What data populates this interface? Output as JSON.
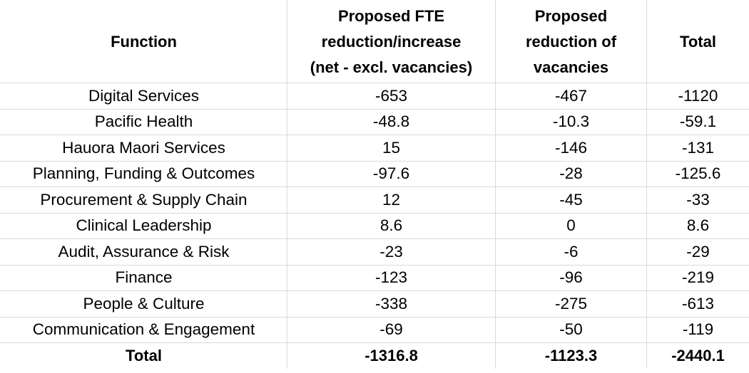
{
  "table": {
    "headers": {
      "function": "Function",
      "fte_line1": "Proposed FTE",
      "fte_line2": "reduction/increase",
      "fte_line3": "(net - excl. vacancies)",
      "vac_line1": "Proposed",
      "vac_line2": "reduction of",
      "vac_line3": "vacancies",
      "total": "Total"
    },
    "rows": [
      {
        "function": "Digital Services",
        "fte": "-653",
        "vacancies": "-467",
        "total": "-1120"
      },
      {
        "function": "Pacific Health",
        "fte": "-48.8",
        "vacancies": "-10.3",
        "total": "-59.1"
      },
      {
        "function": "Hauora Maori Services",
        "fte": "15",
        "vacancies": "-146",
        "total": "-131"
      },
      {
        "function": "Planning, Funding & Outcomes",
        "fte": "-97.6",
        "vacancies": "-28",
        "total": "-125.6"
      },
      {
        "function": "Procurement & Supply Chain",
        "fte": "12",
        "vacancies": "-45",
        "total": "-33"
      },
      {
        "function": "Clinical Leadership",
        "fte": "8.6",
        "vacancies": "0",
        "total": "8.6"
      },
      {
        "function": "Audit, Assurance & Risk",
        "fte": "-23",
        "vacancies": "-6",
        "total": "-29"
      },
      {
        "function": "Finance",
        "fte": "-123",
        "vacancies": "-96",
        "total": "-219"
      },
      {
        "function": "People & Culture",
        "fte": "-338",
        "vacancies": "-275",
        "total": "-613"
      },
      {
        "function": "Communication & Engagement",
        "fte": "-69",
        "vacancies": "-50",
        "total": "-119"
      }
    ],
    "totals": {
      "label": "Total",
      "fte": "-1316.8",
      "vacancies": "-1123.3",
      "total": "-2440.1"
    }
  }
}
